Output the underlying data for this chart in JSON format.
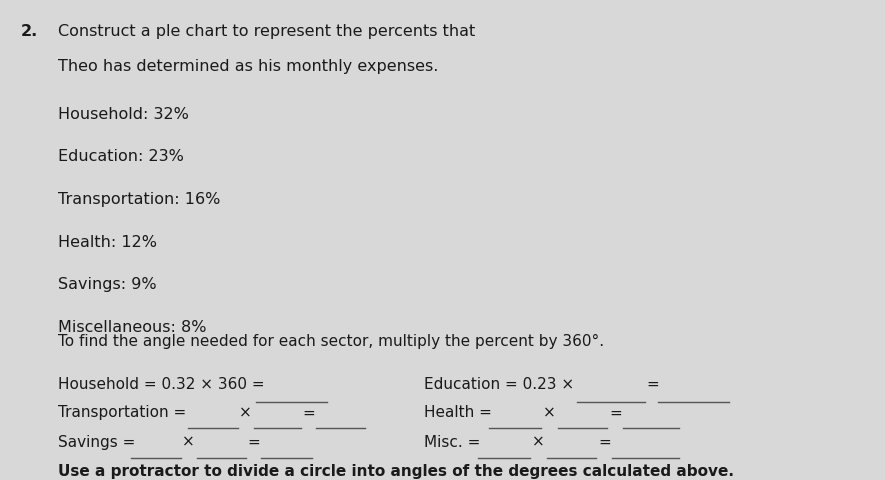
{
  "background_color": "#d8d8d8",
  "number": "2.",
  "title_line1": "Construct a ple chart to represent the percents that",
  "title_line2": "Theo has determined as his monthly expenses.",
  "items": [
    "Household: 32%",
    "Education: 23%",
    "Transportation: 16%",
    "Health: 12%",
    "Savings: 9%",
    "Miscellaneous: 8%"
  ],
  "instruction": "To find the angle needed for each sector, multiply the percent by 360°.",
  "row1_left": "Household = 0.32 × 360 =",
  "row1_right": "Education = 0.23 ×",
  "row2_left": "Transportation =",
  "row2_left_x": "×",
  "row2_left_eq": "=",
  "row2_right": "Health =",
  "row2_right_x": "×",
  "row2_right_eq": "=",
  "row3_left": "Savings =",
  "row3_left_x": "×",
  "row3_left_eq": "=",
  "row3_right": "Misc. =",
  "row3_right_x": "×",
  "row3_right_eq": "=",
  "footer": "Use a protractor to divide a circle into angles of the degrees calculated above.",
  "text_color": "#1a1a1a",
  "font_size_title": 11.5,
  "font_size_items": 11.5,
  "font_size_body": 11.0,
  "line_color": "#555555",
  "line_width": 1.0
}
